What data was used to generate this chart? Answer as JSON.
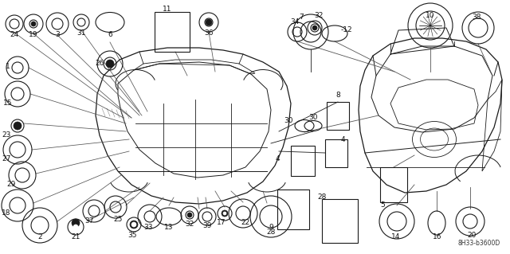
{
  "bg_color": "#f5f5f5",
  "diagram_code": "8H33-b3600D",
  "fig_width": 6.4,
  "fig_height": 3.19,
  "dpi": 100
}
